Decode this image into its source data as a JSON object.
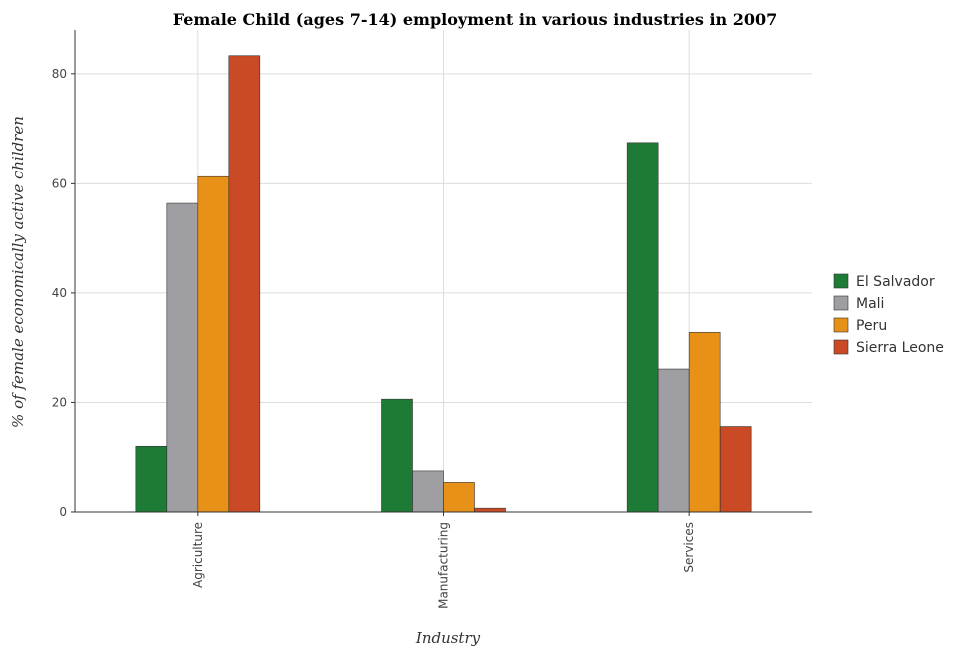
{
  "chart_data": {
    "type": "bar",
    "title": "Female Child (ages 7-14) employment in various industries in 2007",
    "xlabel": "Industry",
    "ylabel": "% of female economically active children",
    "categories": [
      "Agriculture",
      "Manufacturing",
      "Services"
    ],
    "ylim": [
      0,
      88
    ],
    "yticks": [
      0,
      20,
      40,
      60,
      80
    ],
    "grid": true,
    "legend_position": "right",
    "series": [
      {
        "name": "El Salvador",
        "color": "#1e7b35",
        "values": [
          12.0,
          20.6,
          67.4
        ]
      },
      {
        "name": "Mali",
        "color": "#9e9ea3",
        "values": [
          56.4,
          7.5,
          26.1
        ]
      },
      {
        "name": "Peru",
        "color": "#e89118",
        "values": [
          61.3,
          5.4,
          32.8
        ]
      },
      {
        "name": "Sierra Leone",
        "color": "#c94a24",
        "values": [
          83.3,
          0.7,
          15.6
        ]
      }
    ]
  }
}
